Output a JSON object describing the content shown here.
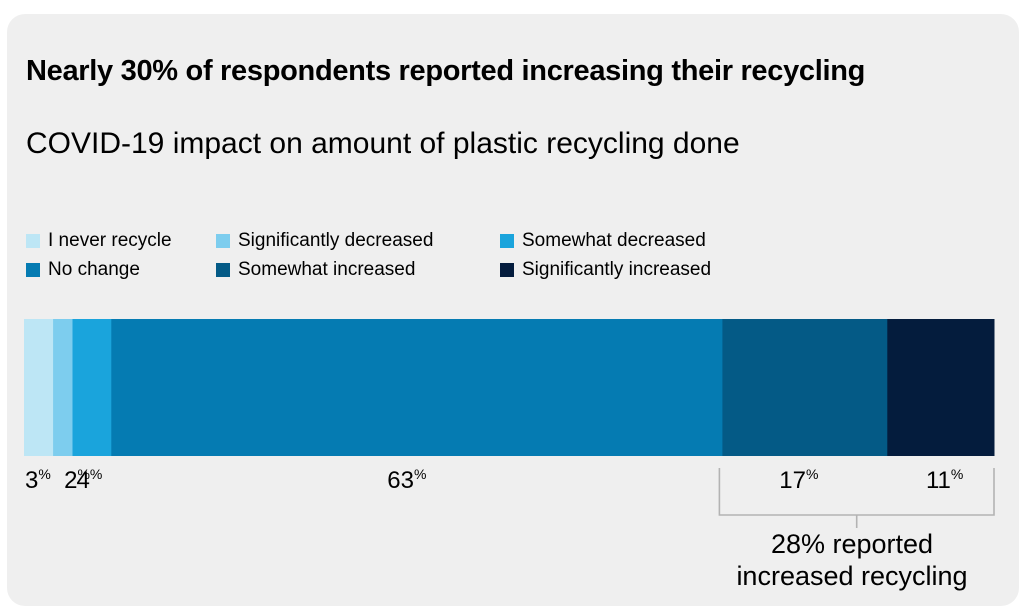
{
  "title": "Nearly 30% of respondents reported increasing their recycling",
  "subtitle": "COVID-19 impact on amount of plastic recycling done",
  "legend": [
    {
      "label": "I never recycle",
      "color": "#bde6f5"
    },
    {
      "label": "Significantly decreased",
      "color": "#7dcdee"
    },
    {
      "label": "Somewhat decreased",
      "color": "#1aa4dc"
    },
    {
      "label": "No change",
      "color": "#057bb2"
    },
    {
      "label": "Somewhat increased",
      "color": "#045a86"
    },
    {
      "label": "Significantly increased",
      "color": "#041c3d"
    }
  ],
  "chart_data": {
    "type": "bar",
    "orientation": "horizontal-stacked-100",
    "categories": [
      "I never recycle",
      "Significantly decreased",
      "Somewhat decreased",
      "No change",
      "Somewhat increased",
      "Significantly increased"
    ],
    "values": [
      3,
      2,
      4,
      63,
      17,
      11
    ],
    "unit": "%",
    "colors": [
      "#bde6f5",
      "#7dcdee",
      "#1aa4dc",
      "#057bb2",
      "#045a86",
      "#041c3d"
    ]
  },
  "annotation": {
    "text_line1": "28% reported",
    "text_line2": "increased recycling"
  }
}
